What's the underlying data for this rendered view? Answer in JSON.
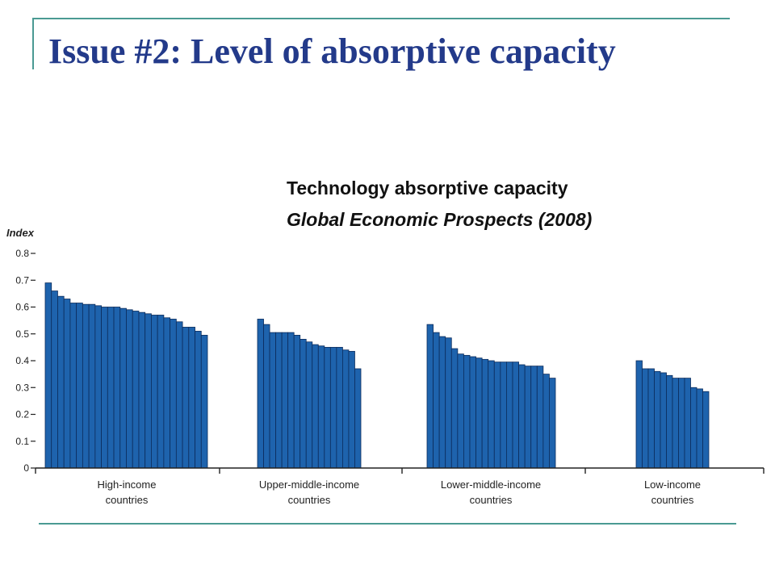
{
  "slide": {
    "title": "Issue #2: Level of absorptive capacity",
    "caption_title": "Technology absorptive capacity",
    "caption_source": "Global Economic Prospects (2008)"
  },
  "colors": {
    "title": "#233a8a",
    "rule": "#4a9a93",
    "bar_fill": "#1e63ad",
    "bar_stroke": "#0c2c5c"
  },
  "chart_data": {
    "type": "bar",
    "ylabel": "Index",
    "ylim": [
      0,
      0.8
    ],
    "yticks": [
      {
        "value": 0.8,
        "label": "0.8"
      },
      {
        "value": 0.7,
        "label": "0.7"
      },
      {
        "value": 0.6,
        "label": "0.6"
      },
      {
        "value": 0.5,
        "label": "0.5"
      },
      {
        "value": 0.4,
        "label": "0.4"
      },
      {
        "value": 0.3,
        "label": "0.3"
      },
      {
        "value": 0.2,
        "label": "0.2"
      },
      {
        "value": 0.1,
        "label": "0.1"
      },
      {
        "value": 0,
        "label": "0"
      }
    ],
    "grid": false,
    "groups": [
      {
        "label_lines": [
          "High-income",
          "countries"
        ],
        "values": [
          0.69,
          0.66,
          0.64,
          0.63,
          0.615,
          0.615,
          0.61,
          0.61,
          0.605,
          0.6,
          0.6,
          0.6,
          0.595,
          0.59,
          0.585,
          0.58,
          0.575,
          0.57,
          0.57,
          0.56,
          0.555,
          0.545,
          0.525,
          0.525,
          0.51,
          0.495
        ]
      },
      {
        "label_lines": [
          "Upper-middle-income",
          "countries"
        ],
        "values": [
          0.555,
          0.535,
          0.505,
          0.505,
          0.505,
          0.505,
          0.495,
          0.48,
          0.47,
          0.46,
          0.455,
          0.45,
          0.45,
          0.45,
          0.44,
          0.435,
          0.37
        ]
      },
      {
        "label_lines": [
          "Lower-middle-income",
          "countries"
        ],
        "values": [
          0.535,
          0.505,
          0.49,
          0.485,
          0.445,
          0.425,
          0.42,
          0.415,
          0.41,
          0.405,
          0.4,
          0.395,
          0.395,
          0.395,
          0.395,
          0.385,
          0.38,
          0.38,
          0.38,
          0.35,
          0.335
        ]
      },
      {
        "label_lines": [
          "Low-income",
          "countries"
        ],
        "values": [
          0.4,
          0.37,
          0.37,
          0.36,
          0.355,
          0.345,
          0.335,
          0.335,
          0.335,
          0.3,
          0.295,
          0.285
        ]
      }
    ]
  }
}
